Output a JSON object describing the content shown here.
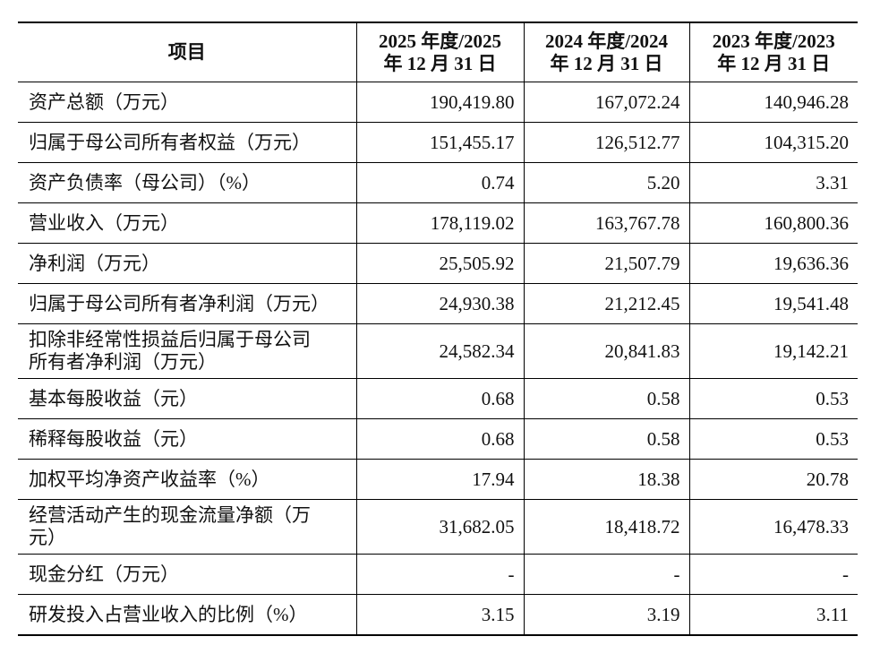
{
  "table": {
    "header": [
      "项目",
      "2025 年度/2025 年 12 月 31 日",
      "2024 年度/2024 年 12 月 31 日",
      "2023 年度/2023 年 12 月 31 日"
    ],
    "rows": [
      [
        "资产总额（万元）",
        "190,419.80",
        "167,072.24",
        "140,946.28"
      ],
      [
        "归属于母公司所有者权益（万元）",
        "151,455.17",
        "126,512.77",
        "104,315.20"
      ],
      [
        "资产负债率（母公司）（%）",
        "0.74",
        "5.20",
        "3.31"
      ],
      [
        "营业收入（万元）",
        "178,119.02",
        "163,767.78",
        "160,800.36"
      ],
      [
        "净利润（万元）",
        "25,505.92",
        "21,507.79",
        "19,636.36"
      ],
      [
        "归属于母公司所有者净利润（万元）",
        "24,930.38",
        "21,212.45",
        "19,541.48"
      ],
      [
        "扣除非经常性损益后归属于母公司\n所有者净利润（万元）",
        "24,582.34",
        "20,841.83",
        "19,142.21"
      ],
      [
        "基本每股收益（元）",
        "0.68",
        "0.58",
        "0.53"
      ],
      [
        "稀释每股收益（元）",
        "0.68",
        "0.58",
        "0.53"
      ],
      [
        "加权平均净资产收益率（%）",
        "17.94",
        "18.38",
        "20.78"
      ],
      [
        "经营活动产生的现金流量净额（万\n元）",
        "31,682.05",
        "18,418.72",
        "16,478.33"
      ],
      [
        "现金分红（万元）",
        "-",
        "-",
        "-"
      ],
      [
        "研发投入占营业收入的比例（%）",
        "3.15",
        "3.19",
        "3.11"
      ]
    ]
  }
}
